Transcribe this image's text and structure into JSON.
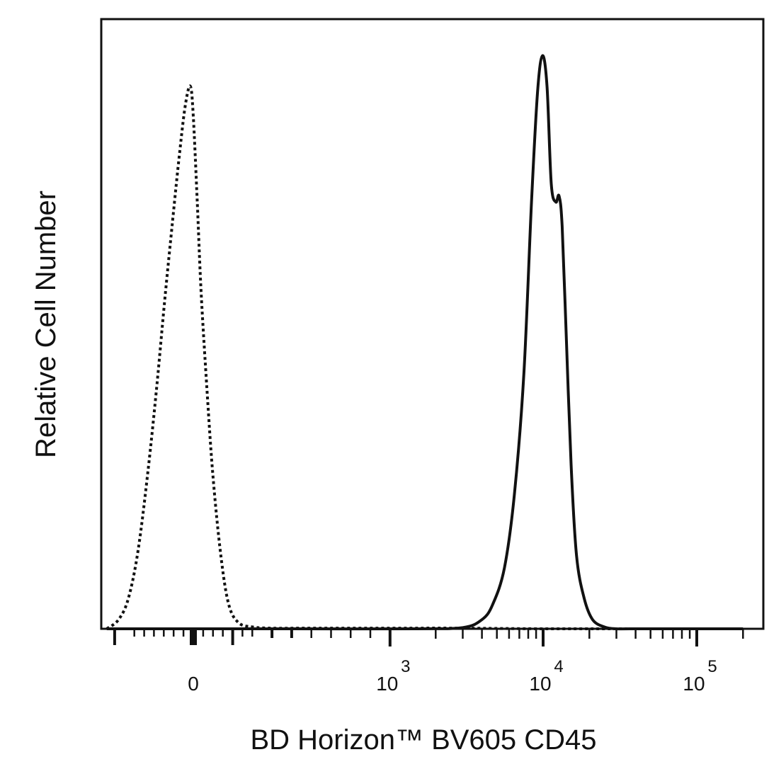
{
  "chart_data": {
    "type": "line",
    "title": "",
    "xlabel": "BD Horizon™ BV605 CD45",
    "ylabel": "Relative Cell Number",
    "x_scale": "biexponential",
    "xlim": [
      -400,
      200000
    ],
    "ylim": [
      0,
      100
    ],
    "x_tick_labels": [
      {
        "value": 0,
        "base": "0",
        "exp": ""
      },
      {
        "value": 1000,
        "base": "10",
        "exp": "3"
      },
      {
        "value": 10000,
        "base": "10",
        "exp": "4"
      },
      {
        "value": 100000,
        "base": "10",
        "exp": "5"
      }
    ],
    "grid": false,
    "legend": "none",
    "series": [
      {
        "style": "dotted",
        "color": "#111111",
        "x": [
          -440,
          -380,
          -330,
          -280,
          -230,
          -185,
          -145,
          -105,
          -70,
          -40,
          -15,
          0,
          20,
          40,
          70,
          100,
          140,
          180,
          230,
          300,
          400,
          600,
          1000,
          3000,
          10000,
          40000,
          200000
        ],
        "y": [
          0,
          1.5,
          5,
          13,
          26,
          40,
          54,
          67,
          78,
          86,
          89,
          84,
          70,
          55,
          39,
          25,
          12,
          4,
          1,
          0.3,
          0.1,
          0.1,
          0.1,
          0.1,
          0,
          0,
          0
        ]
      },
      {
        "style": "solid",
        "color": "#111111",
        "x": [
          -440,
          0,
          500,
          1500,
          3000,
          4000,
          4700,
          5600,
          6500,
          7500,
          8400,
          9200,
          9900,
          10600,
          11300,
          12100,
          12700,
          13300,
          14200,
          15200,
          16500,
          18500,
          21000,
          25000,
          30000,
          40000,
          200000
        ],
        "y": [
          0,
          0,
          0,
          0,
          0.2,
          1.5,
          4,
          10,
          22,
          42,
          70,
          88,
          94,
          89,
          73,
          70,
          71,
          66,
          47,
          27,
          12,
          5,
          1.5,
          0.3,
          0,
          0,
          0
        ]
      }
    ]
  }
}
